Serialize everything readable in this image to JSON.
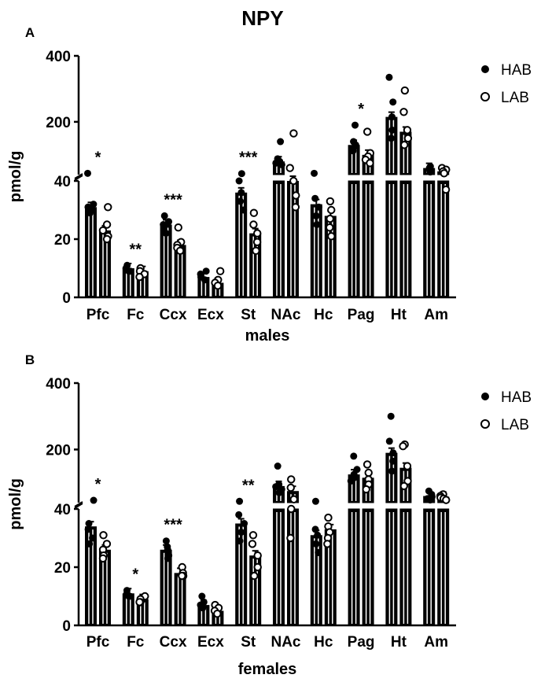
{
  "figure": {
    "title": "NPY"
  },
  "chart_data": [
    {
      "type": "bar",
      "panel": "A",
      "title": "",
      "xlabel": "males",
      "ylabel": "pmol/g",
      "y_axis": {
        "segmented": true,
        "lower_range": [
          0,
          40
        ],
        "upper_range": [
          40,
          400
        ],
        "lower_ticks": [
          "0",
          "20",
          "40"
        ],
        "upper_ticks": [
          "200",
          "400"
        ]
      },
      "legend": {
        "placement": "top-right",
        "entries": [
          "HAB",
          "LAB"
        ]
      },
      "categories": [
        "Pfc",
        "Fc",
        "Ccx",
        "Ecx",
        "St",
        "NAc",
        "Hc",
        "Pag",
        "Ht",
        "Am"
      ],
      "series": [
        {
          "name": "HAB",
          "marker": "filled-circle",
          "values": [
            31,
            10,
            25,
            7,
            36,
            80,
            32,
            130,
            215,
            60
          ],
          "points": [
            [
              44,
              32,
              31,
              30,
              29
            ],
            [
              11,
              10,
              9,
              9
            ],
            [
              28,
              26,
              25,
              23,
              22
            ],
            [
              9,
              8,
              7,
              6
            ],
            [
              43,
              40,
              36,
              33,
              30
            ],
            [
              140,
              88,
              80,
              75,
              70
            ],
            [
              44,
              34,
              31,
              28,
              25
            ],
            [
              190,
              140,
              130,
              120,
              112
            ],
            [
              335,
              260,
              215,
              175,
              150
            ],
            [
              65,
              60,
              55,
              52,
              48
            ]
          ]
        },
        {
          "name": "LAB",
          "marker": "open-circle",
          "values": [
            23,
            9,
            18,
            5,
            22,
            40,
            28,
            100,
            170,
            50
          ],
          "points": [
            [
              31,
              25,
              23,
              21,
              20
            ],
            [
              10,
              9,
              8,
              7
            ],
            [
              24,
              19,
              18,
              17,
              16
            ],
            [
              9,
              6,
              5,
              4
            ],
            [
              29,
              25,
              22,
              19,
              16
            ],
            [
              165,
              60,
              40,
              35,
              31
            ],
            [
              33,
              30,
              27,
              24,
              21
            ],
            [
              170,
              105,
              95,
              85,
              75
            ],
            [
              295,
              230,
              175,
              150,
              130
            ],
            [
              60,
              55,
              50,
              44,
              37
            ]
          ]
        }
      ],
      "significance": [
        {
          "category": "Pfc",
          "label": "*"
        },
        {
          "category": "Fc",
          "label": "**"
        },
        {
          "category": "Ccx",
          "label": "***"
        },
        {
          "category": "St",
          "label": "***"
        },
        {
          "category": "Pag",
          "label": "*"
        }
      ]
    },
    {
      "type": "bar",
      "panel": "B",
      "title": "",
      "xlabel": "females",
      "ylabel": "pmol/g",
      "y_axis": {
        "segmented": true,
        "lower_range": [
          0,
          40
        ],
        "upper_range": [
          40,
          400
        ],
        "lower_ticks": [
          "0",
          "20",
          "40"
        ],
        "upper_ticks": [
          "200",
          "400"
        ]
      },
      "legend": {
        "placement": "top-right",
        "entries": [
          "HAB",
          "LAB"
        ]
      },
      "categories": [
        "Pfc",
        "Fc",
        "Ccx",
        "Ecx",
        "St",
        "NAc",
        "Hc",
        "Pag",
        "Ht",
        "Am"
      ],
      "series": [
        {
          "name": "HAB",
          "marker": "filled-circle",
          "values": [
            34,
            11,
            26,
            7,
            35,
            90,
            31,
            125,
            190,
            60
          ],
          "points": [
            [
              47,
              35,
              33,
              30,
              28
            ],
            [
              12,
              11,
              10,
              10
            ],
            [
              29,
              27,
              26,
              24,
              23
            ],
            [
              10,
              8,
              7,
              6
            ],
            [
              44,
              38,
              35,
              32,
              29
            ],
            [
              150,
              95,
              88,
              80,
              70
            ],
            [
              44,
              33,
              31,
              28,
              25
            ],
            [
              180,
              140,
              125,
              115,
              105
            ],
            [
              300,
              225,
              190,
              165,
              135
            ],
            [
              75,
              65,
              58,
              52,
              48
            ]
          ]
        },
        {
          "name": "LAB",
          "marker": "open-circle",
          "values": [
            26,
            9,
            18,
            5,
            24,
            75,
            33,
            115,
            145,
            58
          ],
          "points": [
            [
              31,
              28,
              26,
              24,
              23
            ],
            [
              10,
              9,
              8,
              8
            ],
            [
              20,
              18,
              17,
              17
            ],
            [
              7,
              6,
              5,
              4
            ],
            [
              31,
              28,
              24,
              20,
              17
            ],
            [
              110,
              85,
              50,
              40,
              30
            ],
            [
              37,
              34,
              32,
              30,
              28
            ],
            [
              155,
              130,
              110,
              95,
              80
            ],
            [
              215,
              210,
              150,
              105,
              90
            ],
            [
              65,
              60,
              55,
              52,
              48
            ]
          ]
        }
      ],
      "significance": [
        {
          "category": "Pfc",
          "label": "*"
        },
        {
          "category": "Fc",
          "label": "*"
        },
        {
          "category": "Ccx",
          "label": "***"
        },
        {
          "category": "St",
          "label": "**"
        }
      ]
    }
  ]
}
